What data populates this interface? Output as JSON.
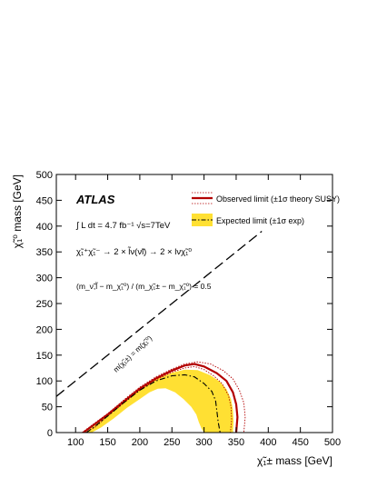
{
  "chart_data": {
    "type": "line",
    "experiment": "ATLAS",
    "luminosity_text": "∫ L dt = 4.7 fb⁻¹ √s=7TeV",
    "process_text": "χ̃₁⁺χ̃₁⁻ → 2 × l̃ν(ν̃l) → 2 × lνχ̃₁⁰",
    "mass_ratio_text": "(m_ν̃,l̃ − m_χ̃₁⁰) / (m_χ̃₁± − m_χ̃₁⁰) = 0.5",
    "diagonal_label": "m(χ̃₁±) = m(χ̃₁⁰)",
    "xlabel": "χ̃₁± mass [GeV]",
    "ylabel": "χ̃₁⁰ mass [GeV]",
    "xlim": [
      70,
      500
    ],
    "ylim": [
      0,
      500
    ],
    "xticks": [
      100,
      150,
      200,
      250,
      300,
      350,
      400,
      450,
      500
    ],
    "yticks": [
      0,
      50,
      100,
      150,
      200,
      250,
      300,
      350,
      400,
      450,
      500
    ],
    "legend_position": "top-right",
    "legend": {
      "observed": "Observed limit (±1σ theory SUSY)",
      "expected": "Expected limit (±1σ exp)"
    },
    "series": [
      {
        "name": "Observed limit",
        "color": "#b30000",
        "style": "solid",
        "x": [
          112,
          125,
          150,
          175,
          200,
          225,
          250,
          270,
          285,
          300,
          320,
          335,
          345,
          350,
          352,
          350
        ],
        "y": [
          0,
          12,
          35,
          60,
          85,
          105,
          120,
          130,
          133,
          128,
          115,
          100,
          78,
          55,
          30,
          0
        ]
      },
      {
        "name": "Observed +1σ",
        "color": "#b30000",
        "style": "dotted",
        "x": [
          110,
          125,
          150,
          175,
          200,
          225,
          250,
          270,
          290,
          310,
          330,
          345,
          355,
          362,
          364,
          362
        ],
        "y": [
          0,
          14,
          37,
          63,
          88,
          108,
          123,
          133,
          137,
          133,
          120,
          104,
          82,
          58,
          30,
          0
        ]
      },
      {
        "name": "Observed -1σ",
        "color": "#b30000",
        "style": "dotted",
        "x": [
          115,
          130,
          150,
          175,
          200,
          225,
          250,
          270,
          285,
          300,
          315,
          328,
          338,
          342,
          343,
          341
        ],
        "y": [
          0,
          10,
          32,
          57,
          82,
          102,
          117,
          125,
          128,
          122,
          110,
          95,
          72,
          50,
          25,
          0
        ]
      },
      {
        "name": "Expected limit",
        "color": "#000000",
        "style": "dashdot",
        "x": [
          117,
          130,
          150,
          175,
          200,
          225,
          250,
          270,
          285,
          300,
          312,
          318,
          320,
          322,
          325
        ],
        "y": [
          0,
          12,
          32,
          58,
          82,
          100,
          110,
          112,
          108,
          95,
          80,
          62,
          42,
          20,
          0
        ]
      },
      {
        "name": "Expected ±1σ band",
        "color": "#ffe033",
        "style": "band",
        "upper_x": [
          115,
          130,
          150,
          175,
          200,
          225,
          250,
          270,
          290,
          310,
          325,
          335,
          342,
          345,
          346,
          345
        ],
        "upper_y": [
          0,
          14,
          34,
          60,
          85,
          104,
          116,
          122,
          121,
          111,
          98,
          84,
          65,
          45,
          22,
          0
        ],
        "lower_x": [
          125,
          140,
          160,
          180,
          200,
          215,
          228,
          240,
          255,
          268,
          280,
          288,
          292,
          296,
          300
        ],
        "lower_y": [
          0,
          10,
          28,
          48,
          65,
          78,
          85,
          86,
          78,
          65,
          50,
          35,
          20,
          8,
          0
        ]
      },
      {
        "name": "Diagonal",
        "color": "#000000",
        "style": "longdash",
        "x": [
          70,
          390
        ],
        "y": [
          70,
          390
        ]
      }
    ]
  }
}
